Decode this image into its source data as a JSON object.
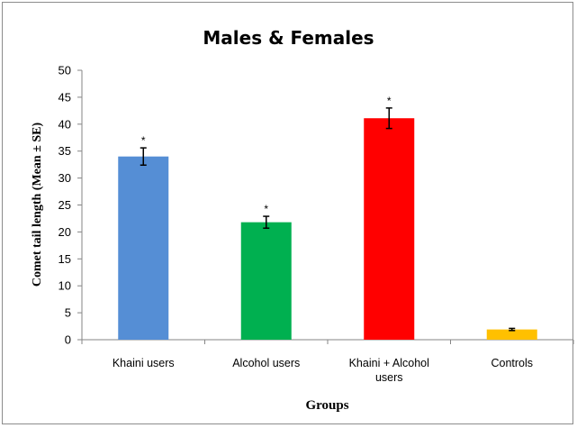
{
  "chart_data": {
    "type": "bar",
    "title": "Males & Females",
    "xlabel": "Groups",
    "ylabel": "Comet tail length (Mean ± SE)",
    "ylim": [
      0,
      50
    ],
    "yticks": [
      0,
      5,
      10,
      15,
      20,
      25,
      30,
      35,
      40,
      45,
      50
    ],
    "grid": false,
    "legend": "none",
    "categories": [
      [
        "Khaini users"
      ],
      [
        "Alcohol users"
      ],
      [
        "Khaini + Alcohol",
        "users"
      ],
      [
        "Controls"
      ]
    ],
    "values": [
      34,
      21.8,
      41.1,
      1.9
    ],
    "errors": [
      1.6,
      1.1,
      1.9,
      0.2
    ],
    "annotations": [
      "*",
      "*",
      "*",
      ""
    ],
    "colors": [
      "#558ed5",
      "#00b050",
      "#ff0000",
      "#ffc000"
    ]
  }
}
